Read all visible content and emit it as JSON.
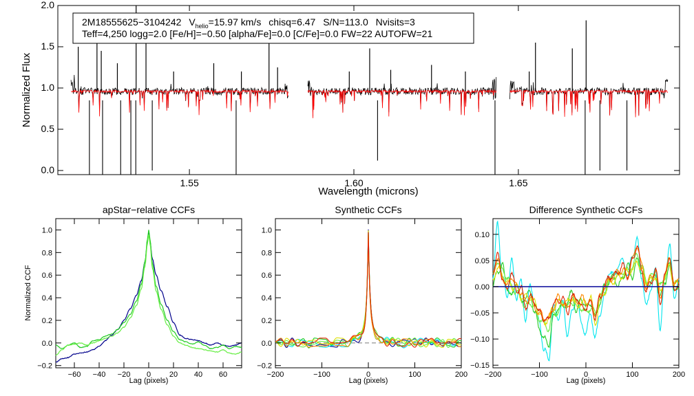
{
  "colors": {
    "observed": "#000000",
    "model": "#ff0000",
    "navy": "#00008b",
    "cyan": "#00e5ee",
    "green": "#22cc22",
    "lightgreen": "#66ee44",
    "yellow": "#dddd00",
    "orange": "#ff8800",
    "red": "#dd2200",
    "zero": "#1818a0",
    "dash": "#888888"
  },
  "chart_data": [
    {
      "type": "line",
      "name": "spectrum",
      "info": {
        "star_id": "2M18555625−3104242",
        "v_label": "V",
        "v_sub": "helio",
        "v_value": "=15.97 km/s",
        "chisq": "chisq=6.47",
        "snr": "S/N=113.0",
        "nvisits": "Nvisits=3",
        "line2": "Teff=4,250 logg=2.0 [Fe/H]=−0.50 [alpha/Fe]=0.0 [C/Fe]=0.0 FW=22 AUTOFW=21"
      },
      "xlabel": "Wavelength (microns)",
      "ylabel": "Normalized Flux",
      "xlim": [
        1.51,
        1.699
      ],
      "ylim": [
        -0.05,
        2.0
      ],
      "xticks": [
        1.55,
        1.6,
        1.65
      ],
      "xtick_labels": [
        "1.55",
        "1.60",
        "1.65"
      ],
      "yticks": [
        0.0,
        0.5,
        1.0,
        1.5,
        2.0
      ],
      "ytick_labels": [
        "0.0",
        "0.5",
        "1.0",
        "1.5",
        "2.0"
      ],
      "chips": [
        [
          1.514,
          1.5802
        ],
        [
          1.586,
          1.6433
        ],
        [
          1.6474,
          1.6955
        ]
      ],
      "continuum": 0.96,
      "spikes": [
        1.5162,
        1.5219,
        1.5232,
        1.5281,
        1.5338,
        1.5368,
        1.5452,
        1.5574,
        1.5658,
        1.5742,
        1.5768,
        1.5986,
        1.6048,
        1.6112,
        1.6236,
        1.6339,
        1.6533,
        1.6552,
        1.6664,
        1.6706
      ],
      "spike_heights": [
        1.5,
        1.72,
        1.45,
        1.3,
        2.0,
        1.78,
        1.2,
        1.3,
        1.2,
        1.55,
        1.25,
        1.2,
        1.48,
        1.22,
        1.28,
        1.2,
        1.2,
        1.55,
        1.48,
        1.82
      ],
      "dropouts": [
        1.5196,
        1.5236,
        1.5291,
        1.5322,
        1.5337,
        1.5387,
        1.5642,
        1.6072,
        1.6429,
        1.6703,
        1.6748,
        1.683
      ],
      "dropout_depths": [
        -0.05,
        -0.05,
        -0.05,
        -0.05,
        -0.05,
        0.0,
        -0.05,
        0.12,
        -0.05,
        -0.05,
        0.0,
        0.0
      ],
      "series": [
        {
          "name": "observed"
        },
        {
          "name": "model"
        }
      ]
    },
    {
      "type": "line",
      "name": "apstar-ccf",
      "title": "apStar−relative CCFs",
      "xlabel": "Lag (pixels)",
      "ylabel": "Normalized CCF",
      "xlim": [
        -75,
        75
      ],
      "ylim": [
        -0.22,
        1.1
      ],
      "xticks": [
        -60,
        -40,
        -20,
        0,
        20,
        40,
        60
      ],
      "xtick_labels": [
        "−60",
        "−40",
        "−20",
        "0",
        "20",
        "40",
        "60"
      ],
      "yticks": [
        -0.2,
        0.0,
        0.2,
        0.4,
        0.6,
        0.8,
        1.0
      ],
      "ytick_labels": [
        "−0.2",
        "0.0",
        "0.2",
        "0.4",
        "0.6",
        "0.8",
        "1.0"
      ],
      "series": [
        {
          "name": "visit-1",
          "x": [
            -75,
            -70,
            -65,
            -60,
            -55,
            -50,
            -45,
            -40,
            -35,
            -30,
            -25,
            -20,
            -15,
            -10,
            -6,
            -3,
            -1,
            0,
            1,
            3,
            6,
            10,
            15,
            20,
            25,
            30,
            35,
            40,
            45,
            50,
            55,
            60,
            65,
            70,
            75
          ],
          "values": [
            -0.17,
            -0.14,
            -0.13,
            -0.1,
            -0.09,
            -0.08,
            -0.06,
            -0.03,
            0.02,
            0.07,
            0.12,
            0.2,
            0.3,
            0.42,
            0.55,
            0.72,
            0.9,
            0.98,
            0.9,
            0.74,
            0.6,
            0.46,
            0.32,
            0.18,
            0.07,
            0.04,
            0.03,
            0.02,
            0.0,
            -0.02,
            0.0,
            -0.02,
            -0.03,
            -0.02,
            0.0
          ]
        },
        {
          "name": "visit-2",
          "x": [
            -75,
            -70,
            -65,
            -60,
            -55,
            -50,
            -45,
            -40,
            -35,
            -30,
            -25,
            -20,
            -15,
            -10,
            -6,
            -3,
            -1,
            0,
            1,
            3,
            6,
            10,
            15,
            20,
            25,
            30,
            35,
            40,
            45,
            50,
            55,
            60,
            65,
            70,
            75
          ],
          "values": [
            -0.02,
            -0.05,
            -0.02,
            0.0,
            -0.04,
            -0.03,
            0.02,
            0.03,
            0.06,
            0.08,
            0.12,
            0.18,
            0.25,
            0.37,
            0.52,
            0.72,
            0.92,
            1.0,
            0.92,
            0.7,
            0.5,
            0.34,
            0.2,
            0.1,
            0.03,
            0.01,
            -0.01,
            0.01,
            -0.02,
            -0.05,
            -0.04,
            -0.02,
            -0.05,
            -0.03,
            -0.04
          ]
        },
        {
          "name": "visit-3",
          "x": [
            -75,
            -70,
            -65,
            -60,
            -55,
            -50,
            -45,
            -40,
            -35,
            -30,
            -25,
            -20,
            -15,
            -10,
            -6,
            -3,
            -1,
            0,
            1,
            3,
            6,
            10,
            15,
            20,
            25,
            30,
            35,
            40,
            45,
            50,
            55,
            60,
            65,
            70,
            75
          ],
          "values": [
            -0.11,
            -0.06,
            -0.02,
            -0.01,
            0.0,
            -0.02,
            0.0,
            0.02,
            0.04,
            0.06,
            0.09,
            0.14,
            0.22,
            0.33,
            0.48,
            0.68,
            0.88,
            0.96,
            0.88,
            0.66,
            0.46,
            0.3,
            0.16,
            0.06,
            0.0,
            -0.02,
            -0.04,
            -0.05,
            -0.06,
            -0.07,
            -0.08,
            -0.06,
            -0.09,
            -0.1,
            -0.08
          ]
        }
      ]
    },
    {
      "type": "line",
      "name": "synthetic-ccf",
      "title": "Synthetic CCFs",
      "xlabel": "Lag (pixels)",
      "xlim": [
        -200,
        200
      ],
      "ylim": [
        -0.22,
        1.1
      ],
      "xticks": [
        -200,
        -100,
        0,
        100,
        200
      ],
      "xtick_labels": [
        "−200",
        "−100",
        "0",
        "100",
        "200"
      ],
      "yticks": [
        -0.2,
        0.0,
        0.2,
        0.4,
        0.6,
        0.8,
        1.0
      ],
      "ytick_labels": [
        "−0.2",
        "0.0",
        "0.2",
        "0.4",
        "0.6",
        "0.8",
        "1.0"
      ],
      "peak": 1.0,
      "zero_line": 0.0,
      "series": [
        {
          "name": "navy"
        },
        {
          "name": "cyan"
        },
        {
          "name": "green"
        },
        {
          "name": "lightgreen"
        },
        {
          "name": "yellow"
        },
        {
          "name": "orange"
        },
        {
          "name": "red"
        }
      ]
    },
    {
      "type": "line",
      "name": "difference-ccf",
      "title": "Difference Synthetic CCFs",
      "xlabel": "Lag (pixels)",
      "xlim": [
        -200,
        200
      ],
      "ylim": [
        -0.155,
        0.13
      ],
      "xticks": [
        -200,
        -100,
        0,
        100,
        200
      ],
      "xtick_labels": [
        "−200",
        "−100",
        "0",
        "100",
        "200"
      ],
      "yticks": [
        -0.15,
        -0.1,
        -0.05,
        0.0,
        0.05,
        0.1
      ],
      "ytick_labels": [
        "−0.15",
        "−0.10",
        "−0.05",
        "0.00",
        "0.05",
        "0.10"
      ],
      "zero_line": 0.0,
      "series": [
        {
          "name": "cyan",
          "x": [
            -200,
            -190,
            -180,
            -170,
            -160,
            -150,
            -140,
            -130,
            -120,
            -110,
            -100,
            -90,
            -80,
            -70,
            -60,
            -50,
            -40,
            -30,
            -20,
            -10,
            0,
            10,
            20,
            30,
            40,
            50,
            60,
            70,
            80,
            90,
            100,
            110,
            120,
            130,
            140,
            150,
            160,
            170,
            180,
            190,
            200
          ],
          "values": [
            0.02,
            0.12,
            0.02,
            -0.02,
            0.05,
            -0.02,
            0.01,
            -0.06,
            0.0,
            -0.03,
            -0.07,
            -0.12,
            -0.14,
            -0.04,
            -0.06,
            -0.03,
            -0.09,
            -0.05,
            -0.02,
            -0.07,
            -0.09,
            -0.05,
            -0.1,
            -0.05,
            -0.02,
            0.03,
            0.02,
            0.04,
            0.05,
            0.02,
            0.06,
            0.09,
            0.02,
            -0.04,
            0.0,
            0.03,
            -0.08,
            0.02,
            0.08,
            -0.02,
            0.01
          ]
        },
        {
          "name": "green",
          "x": [
            -200,
            -190,
            -180,
            -170,
            -160,
            -150,
            -140,
            -130,
            -120,
            -110,
            -100,
            -90,
            -80,
            -70,
            -60,
            -50,
            -40,
            -30,
            -20,
            -10,
            0,
            10,
            20,
            30,
            40,
            50,
            60,
            70,
            80,
            90,
            100,
            110,
            120,
            130,
            140,
            150,
            160,
            170,
            180,
            190,
            200
          ],
          "values": [
            0.0,
            0.03,
            0.04,
            0.0,
            -0.02,
            0.01,
            -0.03,
            -0.02,
            -0.01,
            -0.05,
            -0.08,
            -0.1,
            -0.11,
            -0.06,
            -0.04,
            -0.04,
            -0.03,
            -0.01,
            -0.05,
            -0.02,
            -0.04,
            -0.03,
            -0.06,
            -0.03,
            0.0,
            0.01,
            0.02,
            0.0,
            0.02,
            0.04,
            0.02,
            0.05,
            0.03,
            0.0,
            0.01,
            0.02,
            -0.02,
            0.01,
            0.04,
            0.0,
            -0.01
          ]
        },
        {
          "name": "lightgreen",
          "x": [
            -200,
            -190,
            -180,
            -170,
            -160,
            -150,
            -140,
            -130,
            -120,
            -110,
            -100,
            -90,
            -80,
            -70,
            -60,
            -50,
            -40,
            -30,
            -20,
            -10,
            0,
            10,
            20,
            30,
            40,
            50,
            60,
            70,
            80,
            90,
            100,
            110,
            120,
            130,
            140,
            150,
            160,
            170,
            180,
            190,
            200
          ],
          "values": [
            0.02,
            0.05,
            0.03,
            0.02,
            0.0,
            -0.01,
            -0.02,
            -0.04,
            -0.03,
            -0.04,
            -0.06,
            -0.07,
            -0.08,
            -0.05,
            -0.05,
            -0.03,
            -0.04,
            -0.03,
            -0.03,
            -0.04,
            -0.05,
            -0.04,
            -0.05,
            -0.02,
            -0.01,
            0.01,
            0.02,
            0.02,
            0.03,
            0.03,
            0.04,
            0.06,
            0.04,
            0.01,
            0.02,
            0.02,
            0.0,
            0.02,
            0.05,
            0.01,
            0.0
          ]
        },
        {
          "name": "yellow",
          "x": [
            -200,
            -190,
            -180,
            -170,
            -160,
            -150,
            -140,
            -130,
            -120,
            -110,
            -100,
            -90,
            -80,
            -70,
            -60,
            -50,
            -40,
            -30,
            -20,
            -10,
            0,
            10,
            20,
            30,
            40,
            50,
            60,
            70,
            80,
            90,
            100,
            110,
            120,
            130,
            140,
            150,
            160,
            170,
            180,
            190,
            200
          ],
          "values": [
            0.01,
            0.04,
            0.02,
            0.01,
            0.0,
            0.0,
            -0.02,
            -0.02,
            -0.02,
            -0.03,
            -0.05,
            -0.07,
            -0.06,
            -0.04,
            -0.03,
            -0.03,
            -0.03,
            -0.02,
            -0.04,
            -0.03,
            -0.03,
            -0.02,
            -0.07,
            -0.03,
            -0.01,
            0.01,
            0.01,
            0.02,
            0.02,
            0.03,
            0.03,
            0.05,
            0.03,
            0.01,
            0.01,
            0.02,
            -0.01,
            0.02,
            0.04,
            0.0,
            0.01
          ]
        },
        {
          "name": "orange",
          "x": [
            -200,
            -190,
            -180,
            -170,
            -160,
            -150,
            -140,
            -130,
            -120,
            -110,
            -100,
            -90,
            -80,
            -70,
            -60,
            -50,
            -40,
            -30,
            -20,
            -10,
            0,
            10,
            20,
            30,
            40,
            50,
            60,
            70,
            80,
            90,
            100,
            110,
            120,
            130,
            140,
            150,
            160,
            170,
            180,
            190,
            200
          ],
          "values": [
            0.03,
            0.05,
            0.02,
            0.0,
            0.02,
            0.0,
            -0.01,
            -0.03,
            -0.02,
            -0.04,
            -0.05,
            -0.06,
            -0.06,
            -0.04,
            -0.02,
            -0.03,
            -0.04,
            -0.02,
            -0.03,
            -0.02,
            -0.03,
            -0.03,
            -0.05,
            -0.02,
            0.0,
            0.01,
            0.02,
            0.03,
            0.03,
            0.02,
            0.05,
            0.08,
            0.04,
            0.0,
            0.02,
            0.03,
            -0.02,
            0.02,
            0.06,
            0.0,
            0.02
          ]
        },
        {
          "name": "red",
          "x": [
            -200,
            -190,
            -180,
            -170,
            -160,
            -150,
            -140,
            -130,
            -120,
            -110,
            -100,
            -90,
            -80,
            -70,
            -60,
            -50,
            -40,
            -30,
            -20,
            -10,
            0,
            10,
            20,
            30,
            40,
            50,
            60,
            70,
            80,
            90,
            100,
            110,
            120,
            130,
            140,
            150,
            160,
            170,
            180,
            190,
            200
          ],
          "values": [
            0.03,
            0.06,
            0.02,
            -0.01,
            0.03,
            -0.01,
            0.0,
            -0.04,
            -0.02,
            -0.03,
            -0.05,
            -0.06,
            -0.065,
            -0.03,
            -0.03,
            -0.02,
            -0.05,
            -0.02,
            -0.02,
            -0.04,
            -0.04,
            -0.03,
            -0.06,
            -0.02,
            0.0,
            0.02,
            0.02,
            0.03,
            0.04,
            0.02,
            0.05,
            0.08,
            0.03,
            -0.01,
            0.01,
            0.03,
            -0.03,
            0.02,
            0.06,
            -0.01,
            0.01
          ]
        }
      ]
    }
  ]
}
